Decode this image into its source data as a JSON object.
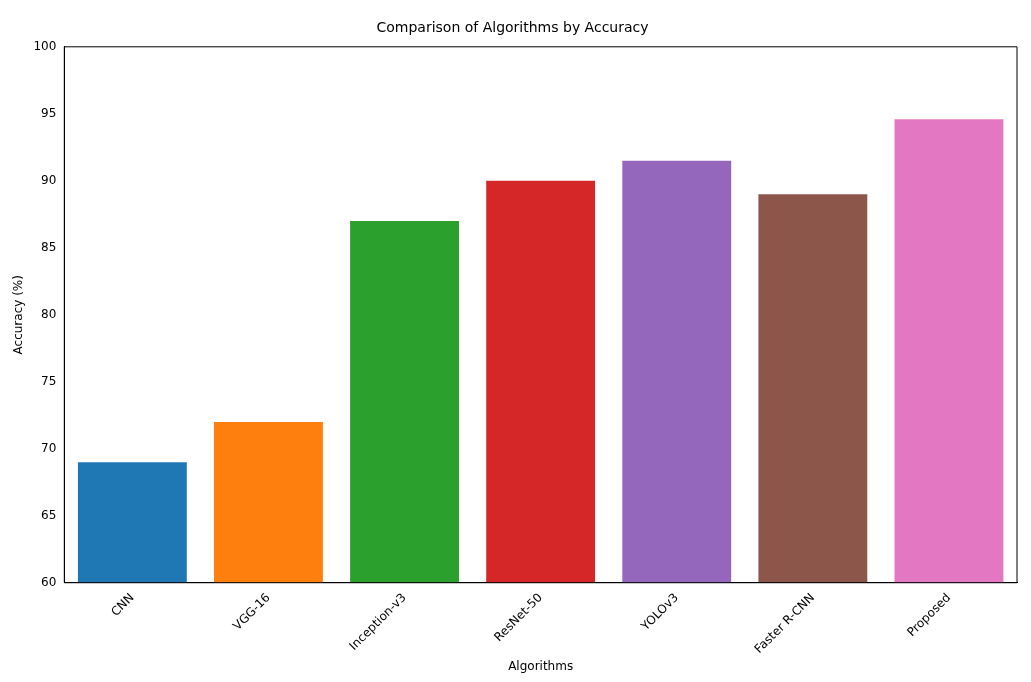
{
  "chart_data": {
    "type": "bar",
    "title": "Comparison of Algorithms by Accuracy",
    "xlabel": "Algorithms",
    "ylabel": "Accuracy (%)",
    "categories": [
      "CNN",
      "VGG-16",
      "Inception-v3",
      "ResNet-50",
      "YOLOv3",
      "Faster R-CNN",
      "Proposed"
    ],
    "values": [
      69,
      72,
      87,
      90,
      91.5,
      89,
      94.6
    ],
    "colors": [
      "#1f77b4",
      "#ff7f0e",
      "#2ca02c",
      "#d62728",
      "#9467bd",
      "#8c564b",
      "#e377c2"
    ],
    "ylim": [
      60,
      100
    ],
    "yticks": [
      60,
      65,
      70,
      75,
      80,
      85,
      90,
      95,
      100
    ],
    "grid": false,
    "legend": false
  }
}
